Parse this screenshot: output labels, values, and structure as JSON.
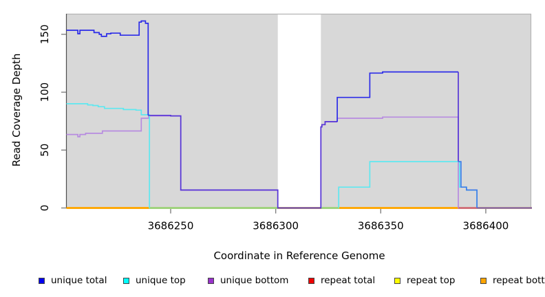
{
  "chart_data": {
    "type": "line",
    "title": "",
    "xlabel": "Coordinate in Reference Genome",
    "ylabel": "Read Coverage Depth",
    "xlim": [
      3686200,
      3686422
    ],
    "ylim": [
      0,
      168
    ],
    "grid": false,
    "legend_position": "bottom",
    "x_ticks": [
      3686250,
      3686300,
      3686350,
      3686400
    ],
    "x_tick_labels": [
      "3686250",
      "3686300",
      "3686350",
      "3686400"
    ],
    "y_ticks": [
      0,
      50,
      100,
      150
    ],
    "y_tick_labels": [
      "0",
      "50",
      "100",
      "150"
    ],
    "plot_background": "#d8d8d8",
    "plot_border_top_right": "#b4b4b4",
    "axis_line_color": "#4d4d4d",
    "tick_color": "#808080",
    "gap_band": {
      "start": 3686301,
      "end": 3686321.5,
      "color": "#ffffff"
    },
    "legend": [
      {
        "label": "unique total",
        "color": "#0000ee"
      },
      {
        "label": "unique top",
        "color": "#00ffff"
      },
      {
        "label": "unique bottom",
        "color": "#9932cc"
      },
      {
        "label": "repeat total",
        "color": "#ee0000"
      },
      {
        "label": "repeat top",
        "color": "#ffff00"
      },
      {
        "label": "repeat bottom",
        "color": "#ffa500"
      }
    ],
    "series": [
      {
        "name": "repeat total",
        "color": "#ee0000",
        "width": 2.4,
        "points": [
          [
            3686200,
            0
          ],
          [
            3686422,
            0
          ]
        ]
      },
      {
        "name": "repeat top",
        "color": "#ffff00",
        "width": 2.4,
        "points": [
          [
            3686200,
            0
          ],
          [
            3686422,
            0
          ]
        ]
      },
      {
        "name": "repeat bottom",
        "color": "#ffa500",
        "width": 2.4,
        "points": [
          [
            3686200,
            0
          ],
          [
            3686422,
            0
          ]
        ]
      },
      {
        "name": "unique bottom",
        "color": "#b78be0",
        "width": 1.7,
        "points": [
          [
            3686200,
            63.5
          ],
          [
            3686205.8,
            63.5
          ],
          [
            3686205.8,
            61.5
          ],
          [
            3686206.8,
            61.5
          ],
          [
            3686206.8,
            63.5
          ],
          [
            3686209.5,
            63.5
          ],
          [
            3686209.5,
            64.5
          ],
          [
            3686217.5,
            64.5
          ],
          [
            3686217.5,
            66.5
          ],
          [
            3686236,
            66.5
          ],
          [
            3686236,
            77.5
          ],
          [
            3686239.5,
            77.5
          ],
          [
            3686239.5,
            79.5
          ],
          [
            3686254.8,
            79.5
          ],
          [
            3686254.8,
            15.3
          ],
          [
            3686301,
            15.3
          ],
          [
            3686301,
            0
          ],
          [
            3686321.5,
            0
          ],
          [
            3686321.5,
            70
          ],
          [
            3686322,
            70
          ],
          [
            3686322,
            72
          ],
          [
            3686323.5,
            72
          ],
          [
            3686323.5,
            74.5
          ],
          [
            3686329.3,
            74.5
          ],
          [
            3686329.3,
            77.5
          ],
          [
            3686350.9,
            77.5
          ],
          [
            3686350.9,
            78.5
          ],
          [
            3686386.9,
            78.5
          ],
          [
            3686386.9,
            0
          ],
          [
            3686422,
            0
          ]
        ]
      },
      {
        "name": "unique top",
        "color": "#5ee8f0",
        "width": 1.7,
        "points": [
          [
            3686200,
            90
          ],
          [
            3686210.5,
            90
          ],
          [
            3686210.5,
            89
          ],
          [
            3686213,
            89
          ],
          [
            3686213,
            88.5
          ],
          [
            3686215.5,
            88.5
          ],
          [
            3686215.5,
            87.5
          ],
          [
            3686218.5,
            87.5
          ],
          [
            3686218.5,
            86
          ],
          [
            3686227.5,
            86
          ],
          [
            3686227.5,
            85
          ],
          [
            3686233.5,
            85
          ],
          [
            3686233.5,
            84.5
          ],
          [
            3686236,
            84.5
          ],
          [
            3686236,
            80.5
          ],
          [
            3686239.9,
            80.5
          ],
          [
            3686239.9,
            0
          ],
          [
            3686330,
            0
          ],
          [
            3686330,
            18
          ],
          [
            3686344.8,
            18
          ],
          [
            3686344.8,
            40
          ],
          [
            3686387.5,
            40
          ],
          [
            3686387.5,
            18
          ],
          [
            3686390.8,
            18
          ],
          [
            3686390.8,
            15.5
          ],
          [
            3686395.8,
            15.5
          ],
          [
            3686395.8,
            0
          ],
          [
            3686422,
            0
          ]
        ]
      }
    ],
    "baseline_overlays": [
      {
        "from": 3686240,
        "to": 3686301,
        "color": "#8fd98f",
        "width": 2.4
      },
      {
        "from": 3686322,
        "to": 3686330,
        "color": "#8fd98f",
        "width": 2.4
      },
      {
        "from": 3686387,
        "to": 3686395.8,
        "color": "#c9688c",
        "width": 2.4
      }
    ],
    "unique_total_segments": [
      {
        "color": "#2b2be8",
        "points": [
          [
            3686200,
            153.5
          ],
          [
            3686205.8,
            153.5
          ],
          [
            3686205.8,
            150.5
          ],
          [
            3686206.8,
            150.5
          ],
          [
            3686206.8,
            153.5
          ],
          [
            3686213.5,
            153.5
          ],
          [
            3686213.5,
            151.5
          ],
          [
            3686216,
            151.5
          ],
          [
            3686216,
            150
          ],
          [
            3686217,
            150
          ],
          [
            3686217,
            148.2
          ],
          [
            3686219.5,
            148.2
          ],
          [
            3686219.5,
            150.5
          ],
          [
            3686221.5,
            150.5
          ],
          [
            3686221.5,
            151
          ],
          [
            3686226,
            151
          ],
          [
            3686226,
            149.2
          ],
          [
            3686235,
            149.2
          ],
          [
            3686235,
            160.5
          ],
          [
            3686236,
            160.5
          ],
          [
            3686236,
            161.5
          ],
          [
            3686238,
            161.5
          ],
          [
            3686238,
            159.5
          ],
          [
            3686239.3,
            159.5
          ],
          [
            3686239.3,
            80
          ]
        ]
      },
      {
        "color": "#5736d6",
        "points": [
          [
            3686239.3,
            80
          ],
          [
            3686250,
            80
          ],
          [
            3686250,
            79.5
          ],
          [
            3686254.8,
            79.5
          ],
          [
            3686254.8,
            15.5
          ],
          [
            3686301,
            15.5
          ],
          [
            3686301,
            0
          ],
          [
            3686321.5,
            0
          ],
          [
            3686321.5,
            70
          ],
          [
            3686322,
            70
          ],
          [
            3686322,
            72
          ],
          [
            3686323.5,
            72
          ],
          [
            3686323.5,
            74.5
          ],
          [
            3686329.3,
            74.5
          ]
        ]
      },
      {
        "color": "#2b2be8",
        "points": [
          [
            3686329.3,
            74.5
          ],
          [
            3686329.3,
            95.5
          ],
          [
            3686344.8,
            95.5
          ],
          [
            3686344.8,
            116.5
          ],
          [
            3686350.9,
            116.5
          ],
          [
            3686350.9,
            117.5
          ],
          [
            3686386.9,
            117.5
          ]
        ]
      },
      {
        "color": "#5736d6",
        "points": [
          [
            3686386.9,
            117.5
          ],
          [
            3686386.9,
            40
          ]
        ]
      },
      {
        "color": "#3f7ce8",
        "points": [
          [
            3686386.9,
            40
          ],
          [
            3686388.2,
            40
          ],
          [
            3686388.2,
            18
          ],
          [
            3686390.8,
            18
          ],
          [
            3686390.8,
            15.5
          ],
          [
            3686395.8,
            15.5
          ],
          [
            3686395.8,
            0
          ]
        ]
      },
      {
        "color": "#6b51d8",
        "points": [
          [
            3686395.8,
            0
          ],
          [
            3686422,
            0
          ]
        ]
      }
    ]
  }
}
